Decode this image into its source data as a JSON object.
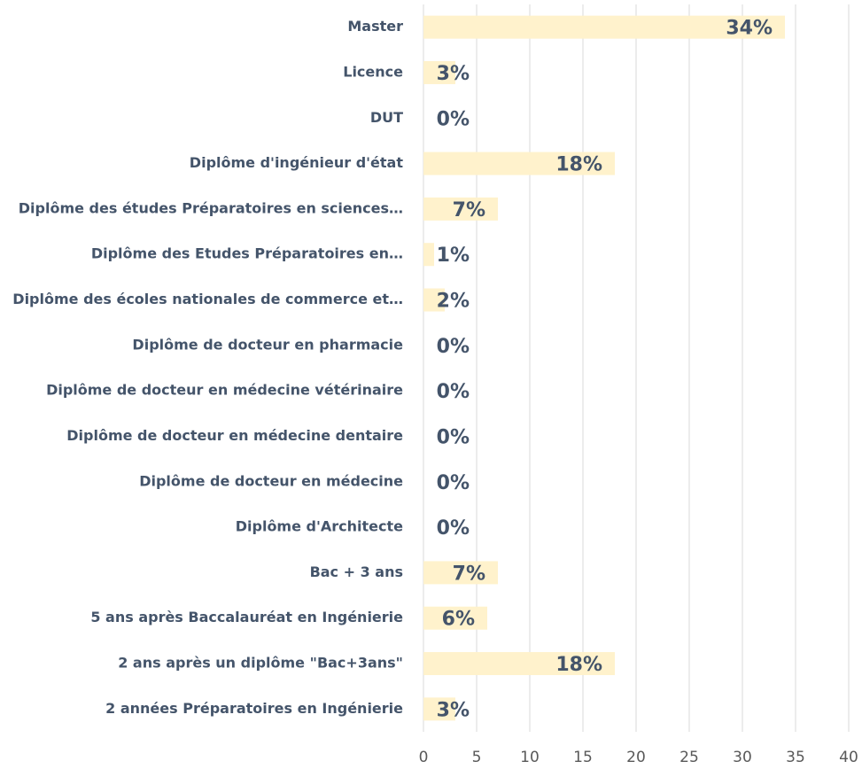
{
  "chart_data": {
    "type": "bar",
    "orientation": "horizontal",
    "categories": [
      "Master",
      "Licence",
      "DUT",
      "Diplôme d'ingénieur d'état",
      "Diplôme des études Préparatoires en sciences…",
      "Diplôme des Etudes Préparatoires en…",
      "Diplôme des écoles nationales de commerce et…",
      "Diplôme de docteur en pharmacie",
      "Diplôme de docteur en médecine vétérinaire",
      "Diplôme de docteur en médecine dentaire",
      "Diplôme de docteur en médecine",
      "Diplôme d'Architecte",
      "Bac + 3 ans",
      "5 ans après Baccalauréat en Ingénierie",
      "2 ans après un diplôme \"Bac+3ans\"",
      "2 années Préparatoires en Ingénierie"
    ],
    "values": [
      34,
      3,
      0,
      18,
      7,
      1,
      2,
      0,
      0,
      0,
      0,
      0,
      7,
      6,
      18,
      3
    ],
    "value_labels": [
      "34%",
      "3%",
      "0%",
      "18%",
      "7%",
      "1%",
      "2%",
      "0%",
      "0%",
      "0%",
      "0%",
      "0%",
      "7%",
      "6%",
      "18%",
      "3%"
    ],
    "color": "#fff2cc",
    "xlim": [
      0,
      40
    ],
    "xticks": [
      0,
      5,
      10,
      15,
      20,
      25,
      30,
      35,
      40
    ],
    "grid": true
  }
}
